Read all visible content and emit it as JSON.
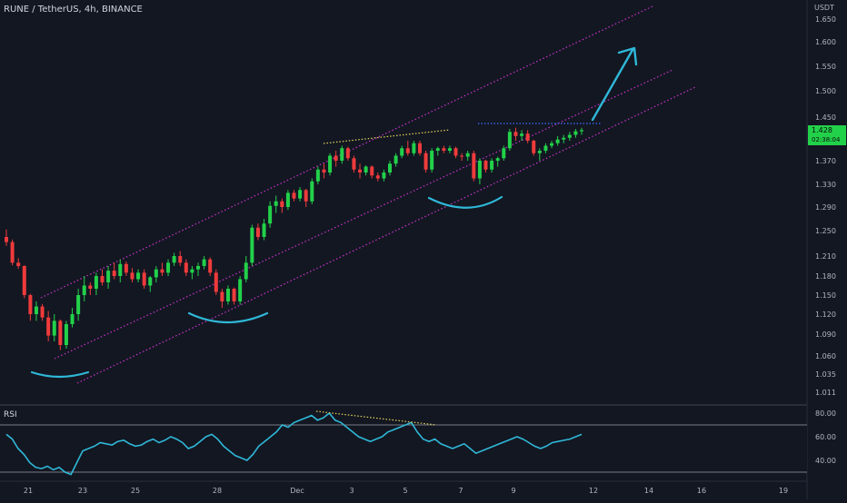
{
  "header": {
    "title": "RUNE / TetherUS, 4h, BINANCE",
    "unit": "USDT"
  },
  "price_tag": {
    "value": "1.428",
    "countdown": "02:38:04",
    "color": "#22d14a"
  },
  "colors": {
    "up": "#26a69a",
    "up_bright": "#22d14a",
    "down": "#ef3b3b",
    "channel": "#cc33cc",
    "rsi": "#2fb8d8",
    "arc": "#2fb8d8",
    "arrow": "#2fb8d8",
    "dotted_yellow": "#e6d45a",
    "dotted_blue": "#3b6fff"
  },
  "chart_data": [
    {
      "type": "candlestick",
      "title": "RUNE / TetherUS, 4h, BINANCE",
      "x_ticks": [
        "21",
        "23",
        "25",
        "28",
        "Dec",
        "3",
        "5",
        "7",
        "9",
        "12",
        "14",
        "16",
        "19"
      ],
      "y_ticks": [
        "1.650",
        "1.600",
        "1.550",
        "1.500",
        "1.450",
        "1.410",
        "1.370",
        "1.330",
        "1.290",
        "1.250",
        "1.210",
        "1.180",
        "1.150",
        "1.120",
        "1.090",
        "1.060",
        "1.035",
        "1.011"
      ],
      "last_price": 1.428,
      "candles": [
        [
          1.24,
          1.252,
          1.226,
          1.232
        ],
        [
          1.232,
          1.236,
          1.196,
          1.2
        ],
        [
          1.2,
          1.207,
          1.191,
          1.195
        ],
        [
          1.195,
          1.196,
          1.145,
          1.15
        ],
        [
          1.15,
          1.152,
          1.11,
          1.12
        ],
        [
          1.12,
          1.14,
          1.11,
          1.132
        ],
        [
          1.132,
          1.136,
          1.11,
          1.115
        ],
        [
          1.115,
          1.125,
          1.08,
          1.088
        ],
        [
          1.088,
          1.12,
          1.08,
          1.11
        ],
        [
          1.11,
          1.112,
          1.068,
          1.075
        ],
        [
          1.075,
          1.11,
          1.07,
          1.105
        ],
        [
          1.105,
          1.13,
          1.1,
          1.12
        ],
        [
          1.12,
          1.16,
          1.11,
          1.15
        ],
        [
          1.15,
          1.18,
          1.14,
          1.165
        ],
        [
          1.165,
          1.17,
          1.15,
          1.16
        ],
        [
          1.16,
          1.185,
          1.15,
          1.18
        ],
        [
          1.18,
          1.19,
          1.165,
          1.17
        ],
        [
          1.17,
          1.195,
          1.16,
          1.188
        ],
        [
          1.188,
          1.2,
          1.175,
          1.18
        ],
        [
          1.18,
          1.205,
          1.17,
          1.198
        ],
        [
          1.198,
          1.202,
          1.18,
          1.185
        ],
        [
          1.185,
          1.192,
          1.17,
          1.175
        ],
        [
          1.175,
          1.19,
          1.17,
          1.185
        ],
        [
          1.185,
          1.19,
          1.16,
          1.165
        ],
        [
          1.165,
          1.18,
          1.155,
          1.178
        ],
        [
          1.178,
          1.195,
          1.17,
          1.19
        ],
        [
          1.19,
          1.2,
          1.18,
          1.185
        ],
        [
          1.185,
          1.205,
          1.18,
          1.2
        ],
        [
          1.2,
          1.215,
          1.195,
          1.21
        ],
        [
          1.21,
          1.218,
          1.195,
          1.2
        ],
        [
          1.2,
          1.205,
          1.18,
          1.185
        ],
        [
          1.185,
          1.195,
          1.175,
          1.19
        ],
        [
          1.19,
          1.2,
          1.18,
          1.195
        ],
        [
          1.195,
          1.21,
          1.19,
          1.205
        ],
        [
          1.205,
          1.208,
          1.18,
          1.185
        ],
        [
          1.185,
          1.19,
          1.15,
          1.155
        ],
        [
          1.155,
          1.16,
          1.13,
          1.14
        ],
        [
          1.14,
          1.165,
          1.135,
          1.16
        ],
        [
          1.16,
          1.162,
          1.135,
          1.14
        ],
        [
          1.14,
          1.18,
          1.135,
          1.175
        ],
        [
          1.175,
          1.21,
          1.17,
          1.2
        ],
        [
          1.2,
          1.26,
          1.195,
          1.255
        ],
        [
          1.255,
          1.262,
          1.235,
          1.24
        ],
        [
          1.24,
          1.27,
          1.235,
          1.262
        ],
        [
          1.262,
          1.3,
          1.255,
          1.292
        ],
        [
          1.292,
          1.31,
          1.28,
          1.3
        ],
        [
          1.3,
          1.305,
          1.28,
          1.29
        ],
        [
          1.29,
          1.32,
          1.285,
          1.315
        ],
        [
          1.315,
          1.32,
          1.3,
          1.305
        ],
        [
          1.305,
          1.325,
          1.3,
          1.32
        ],
        [
          1.32,
          1.322,
          1.29,
          1.3
        ],
        [
          1.3,
          1.34,
          1.295,
          1.335
        ],
        [
          1.335,
          1.36,
          1.33,
          1.355
        ],
        [
          1.355,
          1.365,
          1.34,
          1.35
        ],
        [
          1.35,
          1.385,
          1.345,
          1.38
        ],
        [
          1.38,
          1.39,
          1.36,
          1.37
        ],
        [
          1.37,
          1.4,
          1.365,
          1.395
        ],
        [
          1.395,
          1.398,
          1.37,
          1.375
        ],
        [
          1.375,
          1.38,
          1.35,
          1.355
        ],
        [
          1.355,
          1.365,
          1.34,
          1.35
        ],
        [
          1.35,
          1.362,
          1.345,
          1.36
        ],
        [
          1.36,
          1.362,
          1.34,
          1.345
        ],
        [
          1.345,
          1.35,
          1.335,
          1.34
        ],
        [
          1.34,
          1.355,
          1.335,
          1.35
        ],
        [
          1.35,
          1.37,
          1.345,
          1.365
        ],
        [
          1.365,
          1.385,
          1.36,
          1.38
        ],
        [
          1.38,
          1.4,
          1.375,
          1.395
        ],
        [
          1.395,
          1.41,
          1.38,
          1.385
        ],
        [
          1.385,
          1.41,
          1.38,
          1.405
        ],
        [
          1.405,
          1.41,
          1.38,
          1.385
        ],
        [
          1.385,
          1.39,
          1.35,
          1.355
        ],
        [
          1.355,
          1.395,
          1.35,
          1.39
        ],
        [
          1.39,
          1.398,
          1.38,
          1.395
        ],
        [
          1.395,
          1.4,
          1.385,
          1.39
        ],
        [
          1.39,
          1.4,
          1.385,
          1.395
        ],
        [
          1.395,
          1.398,
          1.375,
          1.38
        ],
        [
          1.38,
          1.385,
          1.37,
          1.378
        ],
        [
          1.378,
          1.39,
          1.37,
          1.385
        ],
        [
          1.385,
          1.39,
          1.335,
          1.34
        ],
        [
          1.34,
          1.375,
          1.33,
          1.37
        ],
        [
          1.37,
          1.372,
          1.35,
          1.355
        ],
        [
          1.355,
          1.375,
          1.35,
          1.37
        ],
        [
          1.37,
          1.378,
          1.36,
          1.375
        ],
        [
          1.375,
          1.4,
          1.37,
          1.395
        ],
        [
          1.395,
          1.43,
          1.39,
          1.425
        ],
        [
          1.425,
          1.432,
          1.41,
          1.418
        ],
        [
          1.418,
          1.428,
          1.41,
          1.422
        ],
        [
          1.422,
          1.428,
          1.405,
          1.41
        ],
        [
          1.41,
          1.412,
          1.38,
          1.385
        ],
        [
          1.385,
          1.395,
          1.37,
          1.39
        ],
        [
          1.39,
          1.405,
          1.385,
          1.4
        ],
        [
          1.4,
          1.41,
          1.395,
          1.405
        ],
        [
          1.405,
          1.418,
          1.4,
          1.412
        ],
        [
          1.412,
          1.42,
          1.405,
          1.415
        ],
        [
          1.415,
          1.425,
          1.41,
          1.42
        ],
        [
          1.42,
          1.43,
          1.415,
          1.426
        ],
        [
          1.426,
          1.432,
          1.42,
          1.428
        ]
      ]
    },
    {
      "type": "line",
      "title": "RSI",
      "y_ticks": [
        "80.00",
        "60.00",
        "40.00"
      ],
      "ylim": [
        25,
        90
      ],
      "bands": [
        70,
        30
      ],
      "values": [
        62,
        58,
        50,
        45,
        38,
        34,
        33,
        35,
        32,
        34,
        30,
        28,
        38,
        48,
        50,
        52,
        55,
        54,
        53,
        56,
        57,
        54,
        52,
        53,
        56,
        58,
        55,
        57,
        60,
        58,
        55,
        50,
        52,
        56,
        60,
        62,
        58,
        52,
        48,
        44,
        42,
        40,
        45,
        52,
        56,
        60,
        64,
        70,
        68,
        72,
        74,
        76,
        78,
        74,
        76,
        80,
        74,
        72,
        68,
        64,
        60,
        58,
        56,
        58,
        60,
        64,
        66,
        68,
        70,
        72,
        64,
        58,
        56,
        58,
        54,
        52,
        50,
        52,
        54,
        50,
        46,
        48,
        50,
        52,
        54,
        56,
        58,
        60,
        58,
        55,
        52,
        50,
        52,
        55,
        56,
        57,
        58,
        60,
        62
      ]
    }
  ]
}
